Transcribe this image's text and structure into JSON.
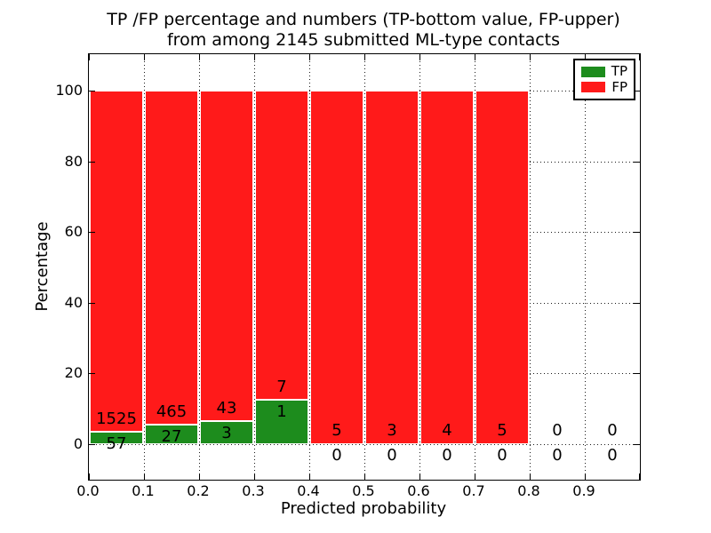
{
  "title": {
    "line1": "TP /FP percentage and numbers (TP-bottom value, FP-upper)",
    "line2": "from among 2145 submitted ML-type contacts"
  },
  "axes": {
    "x_label": "Predicted probability",
    "y_label": "Percentage",
    "x_ticks": [
      "0.0",
      "0.1",
      "0.2",
      "0.3",
      "0.4",
      "0.5",
      "0.6",
      "0.7",
      "0.8",
      "0.9"
    ],
    "y_ticks": [
      "0",
      "20",
      "40",
      "60",
      "80",
      "100"
    ]
  },
  "legend": {
    "items": [
      {
        "label": "TP",
        "color": "#1d8c1d"
      },
      {
        "label": "FP",
        "color": "#ff1a1a"
      }
    ]
  },
  "colors": {
    "tp": "#1d8c1d",
    "fp": "#ff1a1a",
    "grid": "#1a1a1a",
    "bar_edge": "#ffffff",
    "text": "#000000"
  },
  "chart_data": {
    "type": "bar",
    "stacked": true,
    "normalized_to_percent": true,
    "title": "TP /FP percentage and numbers (TP-bottom value, FP-upper) from among 2145 submitted ML-type contacts",
    "xlabel": "Predicted probability",
    "ylabel": "Percentage",
    "xlim": [
      0.0,
      1.0
    ],
    "ylim": [
      -10,
      110
    ],
    "grid": "dotted",
    "legend_position": "upper right",
    "total_contacts": 2145,
    "bin_width": 0.1,
    "categories": [
      "0.0-0.1",
      "0.1-0.2",
      "0.2-0.3",
      "0.3-0.4",
      "0.4-0.5",
      "0.5-0.6",
      "0.6-0.7",
      "0.7-0.8",
      "0.8-0.9",
      "0.9-1.0"
    ],
    "series": [
      {
        "name": "TP",
        "values": [
          57,
          27,
          3,
          1,
          0,
          0,
          0,
          0,
          0,
          0
        ]
      },
      {
        "name": "FP",
        "values": [
          1525,
          465,
          43,
          7,
          5,
          3,
          4,
          5,
          0,
          0
        ]
      }
    ]
  }
}
